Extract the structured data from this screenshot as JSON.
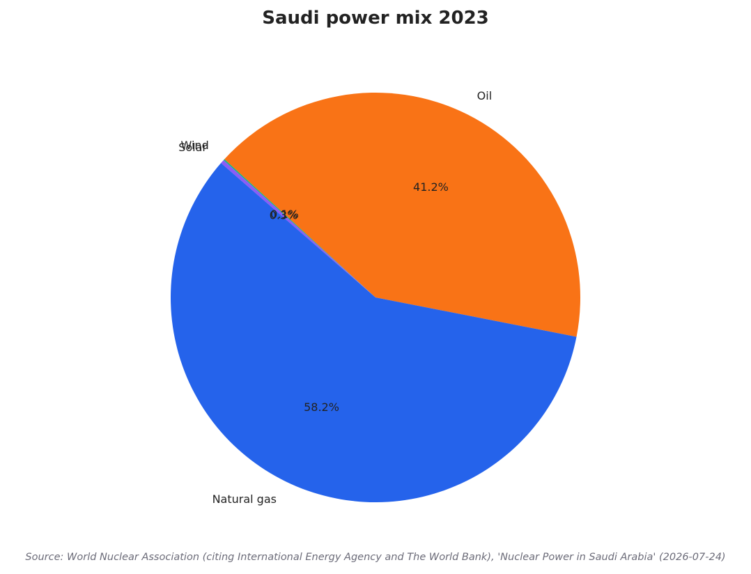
{
  "chart_data": {
    "type": "pie",
    "title": "Saudi power mix 2023",
    "categories": [
      "Oil",
      "Wind",
      "Solar",
      "Natural gas"
    ],
    "values": [
      41.2,
      0.1,
      0.3,
      58.2
    ],
    "value_labels": [
      "41.2%",
      "0.1%",
      "0.3%",
      "58.2%"
    ],
    "colors": [
      "#f97316",
      "#10b981",
      "#8b5cf6",
      "#2563eb"
    ],
    "start_angle_deg": -11.08,
    "direction": "counterclockwise",
    "legend": "none"
  },
  "source": "Source: World Nuclear Association (citing International Energy Agency and The World Bank), 'Nuclear Power in Saudi Arabia' (2026-07-24)"
}
